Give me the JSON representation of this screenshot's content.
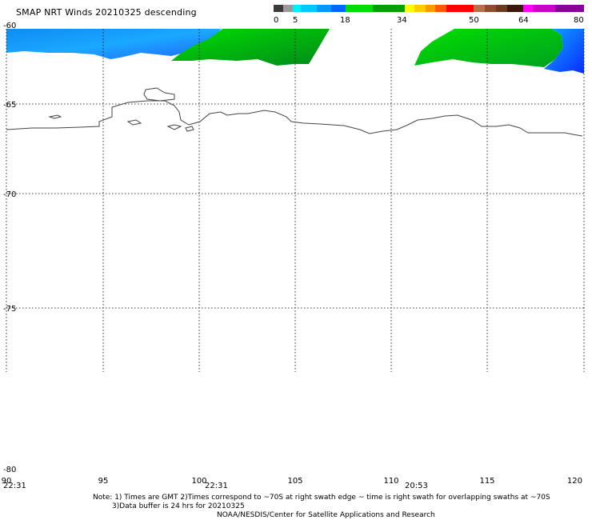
{
  "title": "SMAP NRT Winds  20210325 descending",
  "colorbar": {
    "ticks": [
      "0",
      "5",
      "18",
      "34",
      "50",
      "64",
      "80"
    ],
    "tick_values": [
      0,
      5,
      18,
      34,
      50,
      64,
      80
    ]
  },
  "axes": {
    "lat_labels": [
      "-60",
      "-65",
      "-70",
      "-75",
      "-80"
    ],
    "lat_values": [
      -60,
      -65,
      -70,
      -75,
      -80
    ],
    "lon_labels": [
      "90",
      "95",
      "100",
      "105",
      "110",
      "115",
      "120"
    ],
    "lon_values": [
      90,
      95,
      100,
      105,
      110,
      115,
      120
    ]
  },
  "swath_times": [
    "22:31",
    "22:31",
    "20:53"
  ],
  "notes": {
    "line1": "Note: 1) Times are GMT  2)Times correspond to ~70S at right swath edge ~ time is right swath for overlapping swaths at ~70S",
    "line2": "3)Data buffer is 24 hrs for 20210325",
    "credit": "NOAA/NESDIS/Center for Satellite Applications and Research"
  },
  "colors": {
    "calm": "#555555",
    "light": "#00aaff",
    "moderate": "#00cc00",
    "strong": "#ffcc00",
    "gale": "#ff2222",
    "storm": "#8b3a1a",
    "hurricane": "#cc00cc"
  }
}
